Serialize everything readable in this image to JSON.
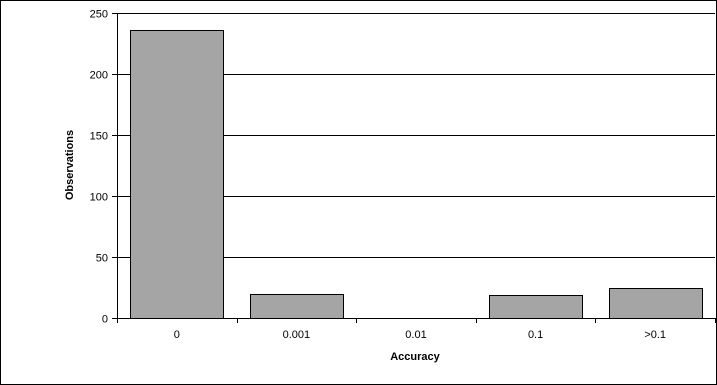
{
  "chart_data": {
    "type": "bar",
    "title": "",
    "xlabel": "Accuracy",
    "ylabel": "Observations",
    "categories": [
      "0",
      "0.001",
      "0.01",
      "0.1",
      ">0.1"
    ],
    "values": [
      236,
      20,
      0,
      19,
      25
    ],
    "ylim": [
      0,
      250
    ],
    "yticks": [
      0,
      50,
      100,
      150,
      200,
      250
    ],
    "grid": "horizontal",
    "legend": "none",
    "colors": {
      "bar_fill": "#a5a5a5",
      "bar_stroke": "#000000",
      "gridline": "#000000",
      "background": "#ffffff"
    }
  }
}
